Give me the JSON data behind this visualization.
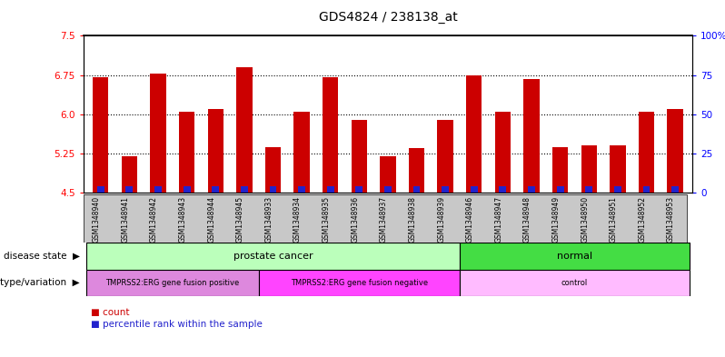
{
  "title": "GDS4824 / 238138_at",
  "samples": [
    "GSM1348940",
    "GSM1348941",
    "GSM1348942",
    "GSM1348943",
    "GSM1348944",
    "GSM1348945",
    "GSM1348933",
    "GSM1348934",
    "GSM1348935",
    "GSM1348936",
    "GSM1348937",
    "GSM1348938",
    "GSM1348939",
    "GSM1348946",
    "GSM1348947",
    "GSM1348948",
    "GSM1348949",
    "GSM1348950",
    "GSM1348951",
    "GSM1348952",
    "GSM1348953"
  ],
  "count_values": [
    6.7,
    5.2,
    6.77,
    6.05,
    6.1,
    6.9,
    5.37,
    6.05,
    6.7,
    5.9,
    5.2,
    5.35,
    5.9,
    6.75,
    6.05,
    6.68,
    5.37,
    5.4,
    5.4,
    6.05,
    6.1
  ],
  "percentile_heights": [
    0.12,
    0.12,
    0.12,
    0.12,
    0.12,
    0.12,
    0.12,
    0.12,
    0.12,
    0.12,
    0.12,
    0.12,
    0.12,
    0.12,
    0.12,
    0.12,
    0.12,
    0.12,
    0.12,
    0.12,
    0.12
  ],
  "ymin": 4.5,
  "ymax": 7.5,
  "yticks": [
    4.5,
    5.25,
    6.0,
    6.75,
    7.5
  ],
  "right_yticks": [
    0,
    25,
    50,
    75,
    100
  ],
  "bar_color": "#cc0000",
  "percentile_color": "#2222cc",
  "disease_state_groups": [
    {
      "label": "prostate cancer",
      "start": 0,
      "end": 12,
      "color": "#bbffbb"
    },
    {
      "label": "normal",
      "start": 13,
      "end": 20,
      "color": "#44dd44"
    }
  ],
  "genotype_groups": [
    {
      "label": "TMPRSS2:ERG gene fusion positive",
      "start": 0,
      "end": 5,
      "color": "#dd88dd"
    },
    {
      "label": "TMPRSS2:ERG gene fusion negative",
      "start": 6,
      "end": 12,
      "color": "#ff44ff"
    },
    {
      "label": "control",
      "start": 13,
      "end": 20,
      "color": "#ffbbff"
    }
  ],
  "label_disease_state": "disease state",
  "label_genotype": "genotype/variation",
  "label_count": "count",
  "label_percentile": "percentile rank within the sample",
  "bar_width": 0.55,
  "gray_row_color": "#c8c8c8"
}
